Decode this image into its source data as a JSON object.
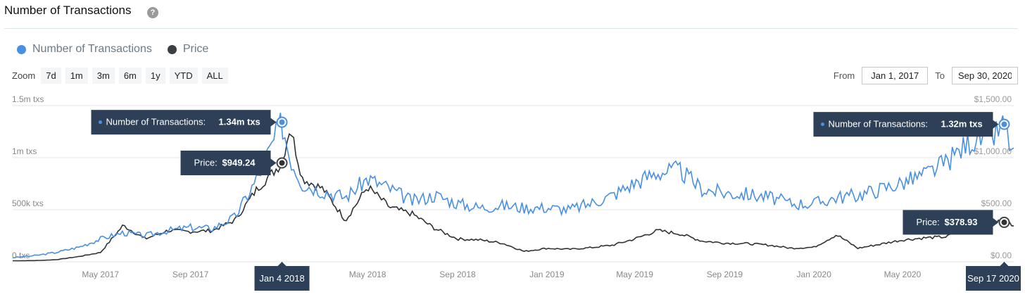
{
  "header": {
    "title": "Number of Transactions",
    "help_icon": "question-circle-icon"
  },
  "legend": [
    {
      "label": "Number of Transactions",
      "color": "#4a90e2"
    },
    {
      "label": "Price",
      "color": "#3a3f44"
    }
  ],
  "zoom": {
    "label": "Zoom",
    "buttons": [
      "7d",
      "1m",
      "3m",
      "6m",
      "1y",
      "YTD",
      "ALL"
    ]
  },
  "range": {
    "from_label": "From",
    "from_value": "Jan 1, 2017",
    "to_label": "To",
    "to_value": "Sep 30, 2020"
  },
  "chart_data": {
    "type": "line",
    "x_range": [
      "Jan 1, 2017",
      "Sep 30, 2020"
    ],
    "x_ticks": [
      "May 2017",
      "Sep 2017",
      "Jan 2018",
      "May 2018",
      "Sep 2018",
      "Jan 2019",
      "May 2019",
      "Sep 2019",
      "Jan 2020",
      "May 2020",
      "Sep 2020"
    ],
    "y_left": {
      "ticks": [
        "0 txs",
        "500k txs",
        "1m txs",
        "1.5m txs"
      ],
      "range": [
        0,
        1500000
      ]
    },
    "y_right": {
      "ticks": [
        "$0.00",
        "$500.00",
        "$1,000.00",
        "$1,500.00"
      ],
      "range": [
        0,
        1500
      ]
    },
    "grid": true,
    "series": [
      {
        "name": "Number of Transactions",
        "axis": "left",
        "color": "#4a90e2",
        "points": [
          [
            "2017-01-01",
            40000
          ],
          [
            "2017-02-01",
            60000
          ],
          [
            "2017-03-01",
            90000
          ],
          [
            "2017-04-01",
            140000
          ],
          [
            "2017-05-01",
            220000
          ],
          [
            "2017-06-01",
            280000
          ],
          [
            "2017-07-01",
            250000
          ],
          [
            "2017-08-01",
            300000
          ],
          [
            "2017-09-01",
            330000
          ],
          [
            "2017-10-01",
            320000
          ],
          [
            "2017-11-01",
            430000
          ],
          [
            "2017-12-01",
            800000
          ],
          [
            "2018-01-04",
            1340000
          ],
          [
            "2018-01-15",
            1000000
          ],
          [
            "2018-02-01",
            750000
          ],
          [
            "2018-03-01",
            680000
          ],
          [
            "2018-04-01",
            620000
          ],
          [
            "2018-05-01",
            800000
          ],
          [
            "2018-06-01",
            700000
          ],
          [
            "2018-07-01",
            580000
          ],
          [
            "2018-08-01",
            640000
          ],
          [
            "2018-09-01",
            560000
          ],
          [
            "2018-10-01",
            520000
          ],
          [
            "2018-11-01",
            540000
          ],
          [
            "2018-12-01",
            520000
          ],
          [
            "2019-01-01",
            520000
          ],
          [
            "2019-02-01",
            500000
          ],
          [
            "2019-03-01",
            560000
          ],
          [
            "2019-04-01",
            640000
          ],
          [
            "2019-05-01",
            760000
          ],
          [
            "2019-06-01",
            860000
          ],
          [
            "2019-07-01",
            880000
          ],
          [
            "2019-08-01",
            700000
          ],
          [
            "2019-09-01",
            660000
          ],
          [
            "2019-10-01",
            650000
          ],
          [
            "2019-11-01",
            620000
          ],
          [
            "2019-12-01",
            560000
          ],
          [
            "2020-01-01",
            560000
          ],
          [
            "2020-02-01",
            620000
          ],
          [
            "2020-03-01",
            640000
          ],
          [
            "2020-04-01",
            700000
          ],
          [
            "2020-05-01",
            760000
          ],
          [
            "2020-06-01",
            840000
          ],
          [
            "2020-07-01",
            960000
          ],
          [
            "2020-08-01",
            1160000
          ],
          [
            "2020-09-01",
            1200000
          ],
          [
            "2020-09-17",
            1320000
          ],
          [
            "2020-09-30",
            1000000
          ]
        ]
      },
      {
        "name": "Price",
        "axis": "right",
        "color": "#2e3236",
        "points": [
          [
            "2017-01-01",
            10
          ],
          [
            "2017-02-01",
            12
          ],
          [
            "2017-03-01",
            20
          ],
          [
            "2017-04-01",
            50
          ],
          [
            "2017-05-01",
            90
          ],
          [
            "2017-06-01",
            350
          ],
          [
            "2017-07-01",
            220
          ],
          [
            "2017-08-01",
            300
          ],
          [
            "2017-09-01",
            290
          ],
          [
            "2017-10-01",
            300
          ],
          [
            "2017-11-01",
            400
          ],
          [
            "2017-12-01",
            700
          ],
          [
            "2018-01-04",
            949.24
          ],
          [
            "2018-01-15",
            1300
          ],
          [
            "2018-02-01",
            800
          ],
          [
            "2018-03-01",
            700
          ],
          [
            "2018-04-01",
            400
          ],
          [
            "2018-05-01",
            720
          ],
          [
            "2018-06-01",
            520
          ],
          [
            "2018-07-01",
            460
          ],
          [
            "2018-08-01",
            320
          ],
          [
            "2018-09-01",
            220
          ],
          [
            "2018-10-01",
            210
          ],
          [
            "2018-11-01",
            180
          ],
          [
            "2018-12-01",
            100
          ],
          [
            "2019-01-01",
            130
          ],
          [
            "2019-02-01",
            120
          ],
          [
            "2019-03-01",
            135
          ],
          [
            "2019-04-01",
            160
          ],
          [
            "2019-05-01",
            220
          ],
          [
            "2019-06-01",
            300
          ],
          [
            "2019-07-01",
            270
          ],
          [
            "2019-08-01",
            200
          ],
          [
            "2019-09-01",
            180
          ],
          [
            "2019-10-01",
            175
          ],
          [
            "2019-11-01",
            160
          ],
          [
            "2019-12-01",
            130
          ],
          [
            "2020-01-01",
            140
          ],
          [
            "2020-02-01",
            260
          ],
          [
            "2020-03-01",
            130
          ],
          [
            "2020-04-01",
            170
          ],
          [
            "2020-05-01",
            210
          ],
          [
            "2020-06-01",
            230
          ],
          [
            "2020-07-01",
            240
          ],
          [
            "2020-08-01",
            390
          ],
          [
            "2020-09-01",
            380
          ],
          [
            "2020-09-17",
            378.93
          ],
          [
            "2020-09-30",
            360
          ]
        ]
      }
    ],
    "tooltips": [
      {
        "date_label": "Jan 4 2018",
        "tx_label": "Number of Transactions:",
        "tx_value": "1.34m txs",
        "price_label": "Price:",
        "price_value": "$949.24"
      },
      {
        "date_label": "Sep 17 2020",
        "tx_label": "Number of Transactions:",
        "tx_value": "1.32m txs",
        "price_label": "Price:",
        "price_value": "$378.93"
      }
    ]
  }
}
